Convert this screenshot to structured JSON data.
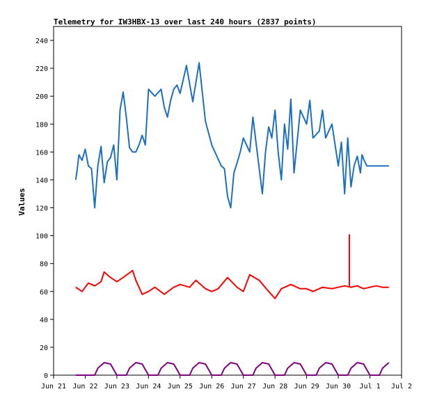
{
  "chart_data": {
    "type": "line",
    "title": "Telemetry for IW3HBX-13 over last 240 hours (2837 points)",
    "xlabel": "",
    "ylabel": "Values",
    "xlim": [
      0,
      11
    ],
    "ylim": [
      0,
      250
    ],
    "grid": false,
    "yticks": [
      0,
      20,
      40,
      60,
      80,
      100,
      120,
      140,
      160,
      180,
      200,
      220,
      240
    ],
    "xticks": [
      {
        "day": 0,
        "label": "Jun 21"
      },
      {
        "day": 1,
        "label": "Jun 22"
      },
      {
        "day": 2,
        "label": "Jun 23"
      },
      {
        "day": 3,
        "label": "Jun 24"
      },
      {
        "day": 4,
        "label": "Jun 25"
      },
      {
        "day": 5,
        "label": "Jun 26"
      },
      {
        "day": 6,
        "label": "Jun 27"
      },
      {
        "day": 7,
        "label": "Jun 28"
      },
      {
        "day": 8,
        "label": "Jun 29"
      },
      {
        "day": 9,
        "label": "Jun 30"
      },
      {
        "day": 10,
        "label": "Jul 1"
      },
      {
        "day": 11,
        "label": "Jul 2"
      }
    ],
    "series": [
      {
        "color": "#1a6fc4",
        "x": [
          0.7,
          0.75,
          0.8,
          0.9,
          1.0,
          1.1,
          1.2,
          1.3,
          1.4,
          1.5,
          1.6,
          1.7,
          1.8,
          1.9,
          2.0,
          2.1,
          2.2,
          2.3,
          2.4,
          2.5,
          2.6,
          2.7,
          2.8,
          2.9,
          3.0,
          3.2,
          3.4,
          3.5,
          3.6,
          3.7,
          3.8,
          3.9,
          4.0,
          4.2,
          4.4,
          4.6,
          4.8,
          5.0,
          5.2,
          5.3,
          5.4,
          5.5,
          5.6,
          5.7,
          5.8,
          5.9,
          6.0,
          6.2,
          6.3,
          6.5,
          6.6,
          6.7,
          6.8,
          6.9,
          7.0,
          7.1,
          7.2,
          7.3,
          7.4,
          7.5,
          7.6,
          7.8,
          8.0,
          8.1,
          8.2,
          8.4,
          8.5,
          8.6,
          8.8,
          9.0,
          9.1,
          9.2,
          9.3,
          9.4,
          9.5,
          9.6,
          9.7,
          9.75,
          9.8,
          9.9,
          10.0,
          10.2,
          10.4,
          10.5,
          10.6
        ],
        "values": [
          140,
          148,
          158,
          154,
          162,
          150,
          148,
          120,
          150,
          164,
          138,
          153,
          156,
          165,
          140,
          190,
          203,
          185,
          163,
          160,
          160,
          165,
          172,
          165,
          205,
          200,
          205,
          192,
          185,
          197,
          205,
          208,
          202,
          222,
          196,
          224,
          182,
          165,
          155,
          150,
          148,
          128,
          120,
          145,
          152,
          160,
          170,
          160,
          185,
          148,
          130,
          160,
          178,
          170,
          190,
          160,
          140,
          180,
          162,
          198,
          145,
          190,
          180,
          197,
          170,
          175,
          190,
          170,
          180,
          150,
          167,
          130,
          170,
          135,
          150,
          157,
          145,
          158,
          155,
          150,
          150,
          150,
          150,
          150,
          150
        ]
      },
      {
        "color": "#ff0000",
        "x": [
          0.7,
          0.9,
          1.1,
          1.3,
          1.5,
          1.6,
          1.8,
          2.0,
          2.2,
          2.5,
          2.6,
          2.8,
          3.0,
          3.2,
          3.5,
          3.8,
          4.0,
          4.3,
          4.5,
          4.8,
          5.0,
          5.2,
          5.5,
          5.8,
          6.0,
          6.2,
          6.5,
          6.8,
          7.0,
          7.2,
          7.5,
          7.8,
          8.0,
          8.2,
          8.5,
          8.8,
          9.0,
          9.2,
          9.4,
          9.6,
          9.8,
          10.0,
          10.2,
          10.4,
          10.6
        ],
        "values": [
          63,
          60,
          66,
          64,
          67,
          74,
          70,
          67,
          70,
          75,
          68,
          58,
          60,
          63,
          58,
          63,
          65,
          63,
          68,
          62,
          60,
          62,
          70,
          63,
          60,
          72,
          68,
          60,
          55,
          62,
          65,
          62,
          62,
          60,
          63,
          62,
          63,
          64,
          63,
          64,
          62,
          63,
          64,
          63,
          63
        ]
      },
      {
        "color": "#800080",
        "x": [
          0.7,
          1.3,
          1.4,
          1.6,
          1.8,
          2.0,
          2.3,
          2.4,
          2.6,
          2.8,
          3.0,
          3.3,
          3.4,
          3.6,
          3.8,
          4.0,
          4.3,
          4.4,
          4.6,
          4.8,
          5.0,
          5.3,
          5.4,
          5.6,
          5.8,
          6.0,
          6.3,
          6.4,
          6.6,
          6.8,
          7.0,
          7.3,
          7.4,
          7.6,
          7.8,
          8.0,
          8.3,
          8.4,
          8.6,
          8.8,
          9.0,
          9.3,
          9.4,
          9.6,
          9.8,
          10.0,
          10.3,
          10.4,
          10.6
        ],
        "values": [
          0,
          0,
          5,
          9,
          8,
          0,
          0,
          5,
          9,
          8,
          0,
          0,
          5,
          9,
          8,
          0,
          0,
          5,
          9,
          8,
          0,
          0,
          5,
          9,
          8,
          0,
          0,
          5,
          9,
          8,
          0,
          0,
          5,
          9,
          8,
          0,
          0,
          5,
          9,
          8,
          0,
          0,
          5,
          9,
          8,
          0,
          0,
          5,
          9
        ]
      }
    ]
  }
}
